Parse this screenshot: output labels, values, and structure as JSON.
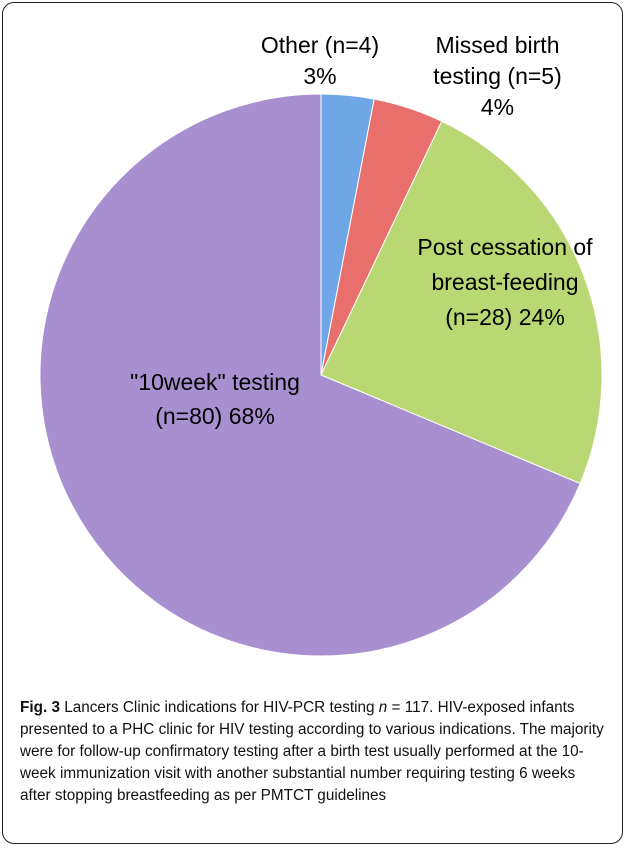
{
  "chart_data": {
    "type": "pie",
    "categories": [
      "Other (n=4)",
      "Missed birth testing (n=5)",
      "Post cessation of breast-feeding (n=28)",
      "\"10week\" testing (n=80)"
    ],
    "values": [
      3,
      4,
      24,
      68
    ],
    "value_labels": [
      "3%",
      "4%",
      "24%",
      "68%"
    ],
    "colors": [
      "#6ea6e6",
      "#e86f6c",
      "#b9d873",
      "#a88fd0"
    ]
  },
  "caption": {
    "label": "Fig. 3",
    "text_before": "Lancers Clinic indications for HIV-PCR testing",
    "n": "n",
    "text_after": "= 117. HIV-exposed infants presented to a PHC clinic for HIV testing according to various indications. The majority were for follow-up confirmatory testing after a birth test usually performed at the 10-week immunization visit with another substantial number requiring testing 6 weeks after stopping breastfeeding as per PMTCT guidelines"
  }
}
